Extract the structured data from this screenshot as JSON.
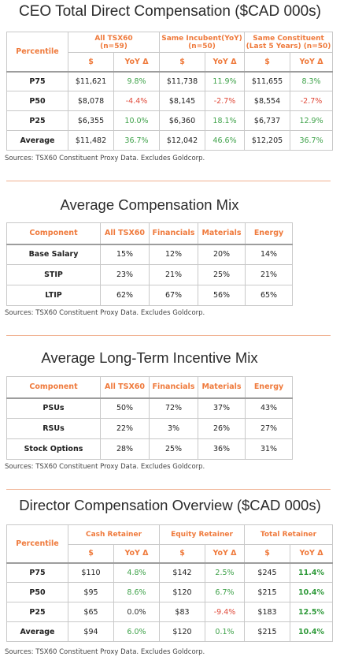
{
  "ceo": {
    "title": "CEO Total Direct Compensation ($CAD 000s)",
    "percentile_header": "Percentile",
    "groups": [
      {
        "line1": "All TSX60",
        "line2": "(n=59)"
      },
      {
        "line1": "Same Incubent(YoY)",
        "line2": "(n=50)"
      },
      {
        "line1": "Same Constituent",
        "line2": "(Last 5 Years) (n=50)"
      }
    ],
    "sub": {
      "dollar": "$",
      "yoy": "YoY Δ"
    },
    "rows": [
      {
        "label": "P75",
        "v": [
          "$11,621",
          "9.8%",
          "$11,738",
          "11.9%",
          "$11,655",
          "8.3%"
        ]
      },
      {
        "label": "P50",
        "v": [
          "$8,078",
          "-4.4%",
          "$8,145",
          "-2.7%",
          "$8,554",
          "-2.7%"
        ]
      },
      {
        "label": "P25",
        "v": [
          "$6,355",
          "10.0%",
          "$6,360",
          "18.1%",
          "$6,737",
          "12.9%"
        ]
      },
      {
        "label": "Average",
        "v": [
          "$11,482",
          "36.7%",
          "$12,042",
          "46.6%",
          "$12,205",
          "36.7%"
        ]
      }
    ],
    "source": "Sources: TSX60 Constituent Proxy Data. Excludes Goldcorp."
  },
  "mix": {
    "title": "Average Compensation Mix",
    "headers": [
      "Component",
      "All TSX60",
      "Financials",
      "Materials",
      "Energy"
    ],
    "rows": [
      {
        "label": "Base Salary",
        "v": [
          "15%",
          "12%",
          "20%",
          "14%"
        ]
      },
      {
        "label": "STIP",
        "v": [
          "23%",
          "21%",
          "25%",
          "21%"
        ]
      },
      {
        "label": "LTIP",
        "v": [
          "62%",
          "67%",
          "56%",
          "65%"
        ]
      }
    ],
    "source": "Sources: TSX60 Constituent Proxy Data. Excludes Goldcorp."
  },
  "lti": {
    "title": "Average Long-Term Incentive Mix",
    "headers": [
      "Component",
      "All TSX60",
      "Financials",
      "Materials",
      "Energy"
    ],
    "rows": [
      {
        "label": "PSUs",
        "v": [
          "50%",
          "72%",
          "37%",
          "43%"
        ]
      },
      {
        "label": "RSUs",
        "v": [
          "22%",
          "3%",
          "26%",
          "27%"
        ]
      },
      {
        "label": "Stock Options",
        "v": [
          "28%",
          "25%",
          "36%",
          "31%"
        ]
      }
    ],
    "source": "Sources: TSX60 Constituent Proxy Data. Excludes Goldcorp."
  },
  "director": {
    "title": "Director Compensation Overview ($CAD 000s)",
    "percentile_header": "Percentile",
    "groups": [
      "Cash Retainer",
      "Equity Retainer",
      "Total Retainer"
    ],
    "sub": {
      "dollar": "$",
      "yoy": "YoY Δ"
    },
    "rows": [
      {
        "label": "P75",
        "v": [
          "$110",
          "4.8%",
          "$142",
          "2.5%",
          "$245",
          "11.4%"
        ]
      },
      {
        "label": "P50",
        "v": [
          "$95",
          "8.6%",
          "$120",
          "6.7%",
          "$215",
          "10.4%"
        ]
      },
      {
        "label": "P25",
        "v": [
          "$65",
          "0.0%",
          "$83",
          "-9.4%",
          "$183",
          "12.5%"
        ]
      },
      {
        "label": "Average",
        "v": [
          "$94",
          "6.0%",
          "$120",
          "0.1%",
          "$215",
          "10.4%"
        ]
      }
    ],
    "source": "Sources: TSX60 Constituent Proxy Data. Excludes Goldcorp."
  }
}
